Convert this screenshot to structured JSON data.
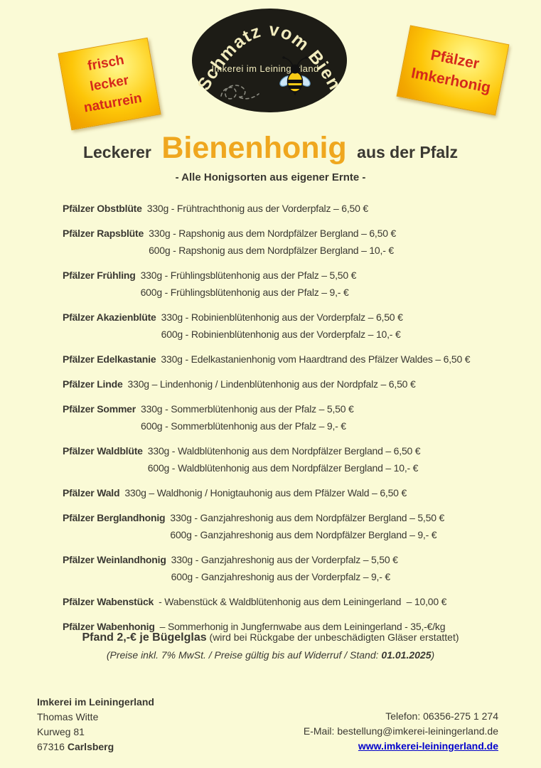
{
  "colors": {
    "background": "#FAFAD6",
    "accent_orange": "#EFA71F",
    "badge_red": "#D5281B",
    "badge_yellow": "#FDC608",
    "logo_background": "#1D1C16",
    "logo_text": "#F2ECBE",
    "link_blue": "#0000CC",
    "body_text": "#3A3832"
  },
  "badges": {
    "left": {
      "lines": [
        "frisch",
        "lecker",
        "naturrein"
      ]
    },
    "right": {
      "lines": [
        "Pfälzer",
        "Imkerhonig"
      ]
    }
  },
  "logo": {
    "arc_text": "Schmatz vom Bien",
    "subtitle": "Imkerei im Leiningerland"
  },
  "title": {
    "pre": "Leckerer",
    "highlight": "Bienenhonig",
    "post": "aus der Pfalz",
    "subtitle": "- Alle Honigsorten aus eigener Ernte -"
  },
  "items": [
    {
      "name": "Pfälzer Obstblüte",
      "lines": [
        "330g - Frühtrachthonig aus der Vorderpfalz – 6,50 €"
      ]
    },
    {
      "name": "Pfälzer Rapsblüte",
      "lines": [
        "330g - Rapshonig aus dem Nordpfälzer Bergland – 6,50 €",
        "600g - Rapshonig aus dem Nordpfälzer Bergland – 10,- €"
      ]
    },
    {
      "name": "Pfälzer Frühling",
      "lines": [
        "330g - Frühlingsblütenhonig aus der Pfalz – 5,50 €",
        "600g - Frühlingsblütenhonig aus der Pfalz – 9,- €"
      ]
    },
    {
      "name": "Pfälzer Akazienblüte",
      "lines": [
        "330g - Robinienblütenhonig aus der Vorderpfalz – 6,50 €",
        "600g - Robinienblütenhonig aus der Vorderpfalz – 10,- €"
      ]
    },
    {
      "name": "Pfälzer Edelkastanie",
      "lines": [
        "330g - Edelkastanienhonig vom Haardtrand des Pfälzer Waldes – 6,50 €"
      ]
    },
    {
      "name": "Pfälzer Linde",
      "lines": [
        "330g – Lindenhonig / Lindenblütenhonig aus der Nordpfalz – 6,50 €"
      ]
    },
    {
      "name": "Pfälzer Sommer",
      "lines": [
        "330g - Sommerblütenhonig aus der Pfalz – 5,50 €",
        "600g - Sommerblütenhonig aus der Pfalz – 9,- €"
      ]
    },
    {
      "name": "Pfälzer Waldblüte",
      "lines": [
        "330g - Waldblütenhonig aus dem Nordpfälzer Bergland – 6,50 €",
        "600g - Waldblütenhonig aus dem Nordpfälzer Bergland – 10,- €"
      ]
    },
    {
      "name": "Pfälzer Wald",
      "lines": [
        "330g – Waldhonig / Honigtauhonig aus dem Pfälzer Wald – 6,50 €"
      ]
    },
    {
      "name": "Pfälzer Berglandhonig",
      "lines": [
        "330g - Ganzjahreshonig aus dem Nordpfälzer Bergland – 5,50 €",
        "600g - Ganzjahreshonig aus dem Nordpfälzer Bergland – 9,- €"
      ]
    },
    {
      "name": "Pfälzer Weinlandhonig",
      "lines": [
        "330g - Ganzjahreshonig aus der Vorderpfalz – 5,50 €",
        "600g - Ganzjahreshonig aus der Vorderpfalz – 9,- €"
      ]
    },
    {
      "name": "Pfälzer Wabenstück",
      "lines": [
        "- Wabenstück & Waldblütenhonig aus dem Leiningerland  – 10,00 €"
      ]
    },
    {
      "name": "Pfälzer Wabenhonig",
      "lines": [
        "– Sommerhonig in Jungfernwabe aus dem Leiningerland - 35,-€/kg"
      ]
    }
  ],
  "deposit": {
    "bold": "Pfand 2,-€ je Bügelglas",
    "rest": "(wird bei Rückgabe der unbeschädigten Gläser erstattet)",
    "note_pre": "(Preise inkl. 7% MwSt. / Preise gültig bis auf Widerruf / Stand: ",
    "note_date": "01.01.2025",
    "note_post": ")"
  },
  "footer": {
    "company": "Imkerei im Leiningerland",
    "owner": "Thomas Witte",
    "street": "Kurweg 81",
    "zip": "67316",
    "city": "Carlsberg",
    "phone": "Telefon: 06356-275 1 274",
    "email": "E-Mail: bestellung@imkerei-leiningerland.de",
    "website": "www.imkerei-leiningerland.de"
  }
}
